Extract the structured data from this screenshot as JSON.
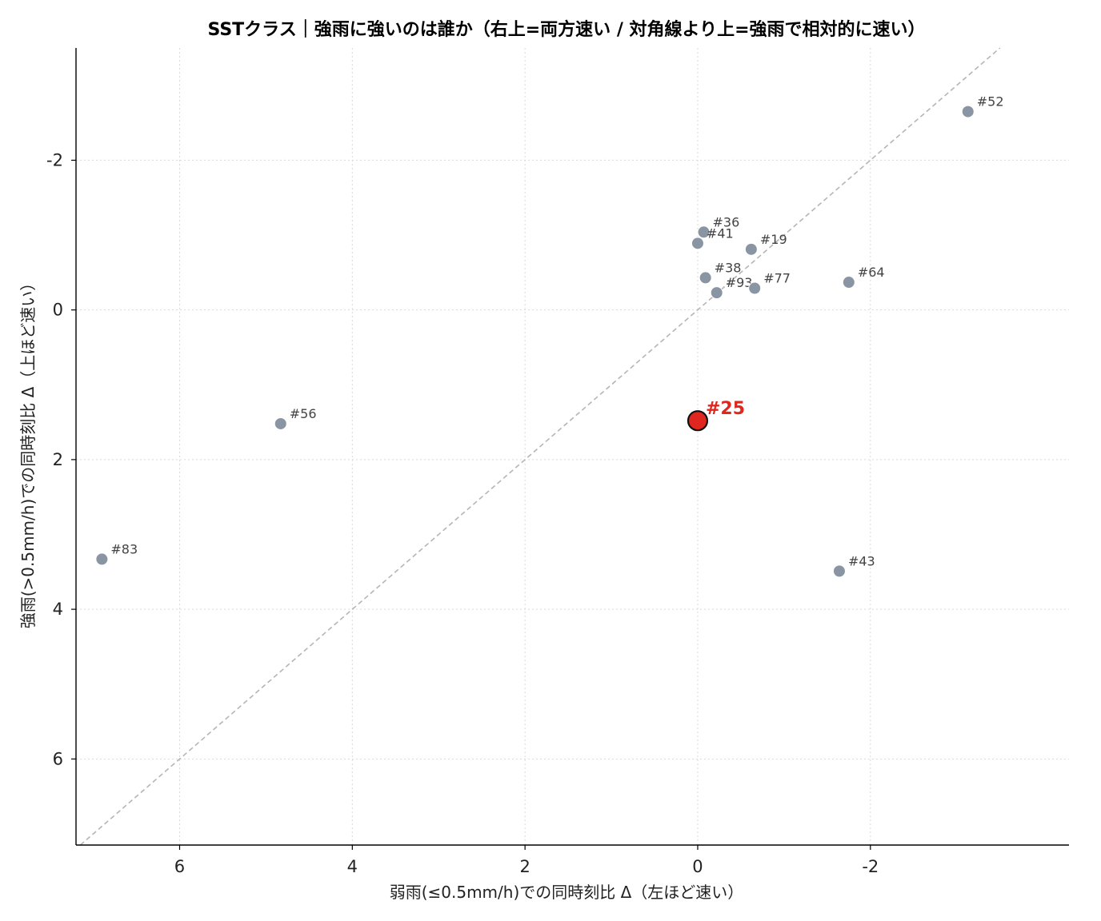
{
  "chart_data": {
    "type": "scatter",
    "title": "SSTクラス｜強雨に強いのは誰か（右上=両方速い / 対角線より上=強雨で相対的に速い）",
    "xlabel": "弱雨(≤0.5mm/h)での同時刻比 Δ（左ほど速い）",
    "ylabel": "強雨(>0.5mm/h)での同時刻比 Δ（上ほど速い）",
    "x_inverted": true,
    "y_inverted": true,
    "xlim": [
      7.2,
      -4.3
    ],
    "ylim": [
      7.15,
      -3.5
    ],
    "xticks": [
      6,
      4,
      2,
      0,
      -2
    ],
    "yticks": [
      -2,
      0,
      2,
      4,
      6
    ],
    "xtick_labels": [
      "6",
      "4",
      "2",
      "0",
      "-2"
    ],
    "ytick_labels": [
      "-2",
      "0",
      "2",
      "4",
      "6"
    ],
    "grid": true,
    "diagonal": true,
    "points": [
      {
        "label": "#52",
        "x": -3.13,
        "y": -2.65
      },
      {
        "label": "#36",
        "x": -0.07,
        "y": -1.04
      },
      {
        "label": "#41",
        "x": 0.0,
        "y": -0.89
      },
      {
        "label": "#19",
        "x": -0.62,
        "y": -0.81
      },
      {
        "label": "#38",
        "x": -0.09,
        "y": -0.43
      },
      {
        "label": "#93",
        "x": -0.22,
        "y": -0.23
      },
      {
        "label": "#77",
        "x": -0.66,
        "y": -0.29
      },
      {
        "label": "#64",
        "x": -1.75,
        "y": -0.37
      },
      {
        "label": "#56",
        "x": 4.83,
        "y": 1.52
      },
      {
        "label": "#83",
        "x": 6.9,
        "y": 3.33
      },
      {
        "label": "#43",
        "x": -1.64,
        "y": 3.49
      }
    ],
    "highlight": {
      "label": "#25",
      "x": 0.0,
      "y": 1.48
    },
    "colors": {
      "point": "#8a95a3",
      "highlight": "#e0271f",
      "diagonal": "#b5b5b5",
      "grid": "#d9d9d9"
    }
  }
}
